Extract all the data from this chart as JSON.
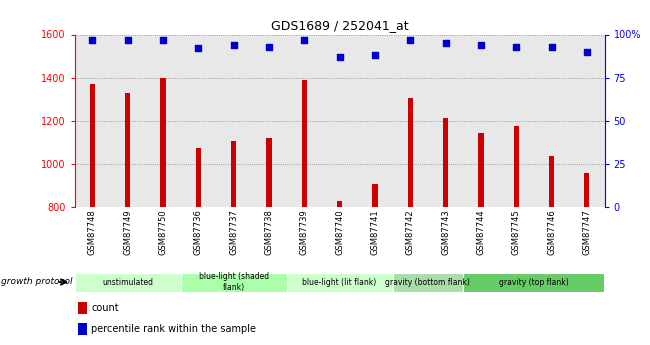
{
  "title": "GDS1689 / 252041_at",
  "samples": [
    "GSM87748",
    "GSM87749",
    "GSM87750",
    "GSM87736",
    "GSM87737",
    "GSM87738",
    "GSM87739",
    "GSM87740",
    "GSM87741",
    "GSM87742",
    "GSM87743",
    "GSM87744",
    "GSM87745",
    "GSM87746",
    "GSM87747"
  ],
  "counts": [
    1370,
    1330,
    1400,
    1075,
    1105,
    1120,
    1390,
    830,
    905,
    1305,
    1215,
    1145,
    1175,
    1035,
    960
  ],
  "percentile_ranks": [
    97,
    97,
    97,
    92,
    94,
    93,
    97,
    87,
    88,
    97,
    95,
    94,
    93,
    93,
    90
  ],
  "ylim_left": [
    800,
    1600
  ],
  "ylim_right": [
    0,
    100
  ],
  "yticks_left": [
    800,
    1000,
    1200,
    1400,
    1600
  ],
  "yticks_right": [
    0,
    25,
    50,
    75,
    100
  ],
  "bar_color": "#cc0000",
  "dot_color": "#0000cc",
  "bar_width": 0.15,
  "groups": [
    {
      "label": "unstimulated",
      "start": 0,
      "end": 3,
      "color": "#ccffcc"
    },
    {
      "label": "blue-light (shaded\nflank)",
      "start": 3,
      "end": 6,
      "color": "#aaffaa"
    },
    {
      "label": "blue-light (lit flank)",
      "start": 6,
      "end": 9,
      "color": "#ccffcc"
    },
    {
      "label": "gravity (bottom flank)",
      "start": 9,
      "end": 11,
      "color": "#aaddaa"
    },
    {
      "label": "gravity (top flank)",
      "start": 11,
      "end": 15,
      "color": "#66cc66"
    }
  ],
  "growth_protocol_label": "growth protocol",
  "legend_count_label": "count",
  "legend_pct_label": "percentile rank within the sample",
  "plot_bg_color": "#e8e8e8",
  "xtick_bg_color": "#c8c8c8",
  "grid_color": "#888888"
}
